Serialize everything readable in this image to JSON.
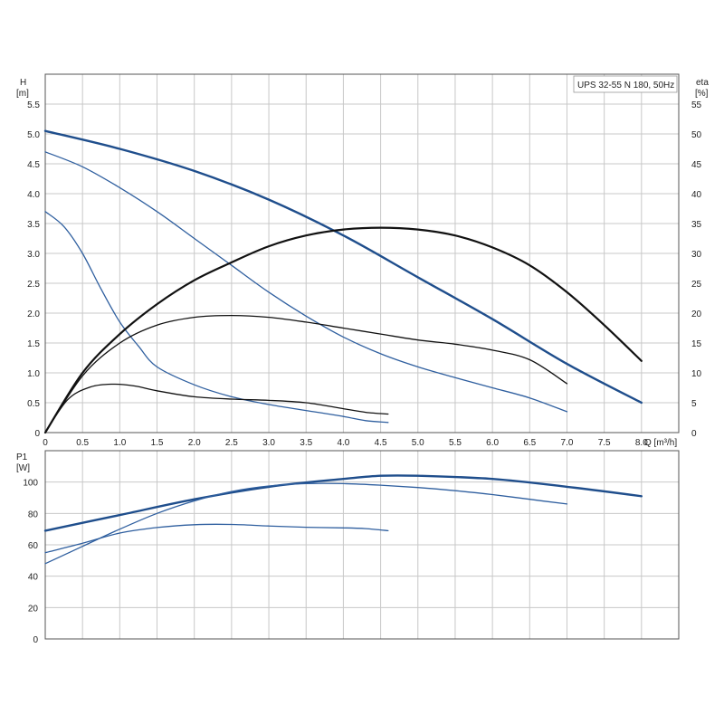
{
  "chart_data": [
    {
      "type": "line",
      "title": "UPS 32-55 N 180, 50Hz",
      "xlabel": "Q [m³/h]",
      "ylabel_line1": "H",
      "ylabel_line2": "[m]",
      "y2label_line1": "eta",
      "y2label_line2": "[%]",
      "xlim": [
        0,
        8.5
      ],
      "ylim": [
        0,
        6.0
      ],
      "y2lim": [
        0,
        60
      ],
      "xticks": [
        "0",
        "0.5",
        "1.0",
        "1.5",
        "2.0",
        "2.5",
        "3.0",
        "3.5",
        "4.0",
        "4.5",
        "5.0",
        "5.5",
        "6.0",
        "6.5",
        "7.0",
        "7.5",
        "8.0"
      ],
      "yticks": [
        "0",
        "0.5",
        "1.0",
        "1.5",
        "2.0",
        "2.5",
        "3.0",
        "3.5",
        "4.0",
        "4.5",
        "5.0",
        "5.5"
      ],
      "y2ticks": [
        "0",
        "5",
        "10",
        "15",
        "20",
        "25",
        "30",
        "35",
        "40",
        "45",
        "50",
        "55"
      ],
      "grid": true,
      "series": [
        {
          "axis": "left",
          "color": "#1f4e8c",
          "width": 2.4,
          "x": [
            0,
            1,
            2,
            3,
            4,
            5,
            6,
            7,
            8
          ],
          "y": [
            5.05,
            4.75,
            4.38,
            3.9,
            3.3,
            2.6,
            1.9,
            1.15,
            0.5
          ]
        },
        {
          "axis": "left",
          "color": "#2f5f9f",
          "width": 1.3,
          "x": [
            0,
            0.5,
            1,
            1.5,
            2,
            2.5,
            3,
            3.5,
            4,
            4.5,
            5,
            5.5,
            6,
            6.5,
            7
          ],
          "y": [
            4.7,
            4.45,
            4.1,
            3.7,
            3.25,
            2.8,
            2.35,
            1.95,
            1.6,
            1.32,
            1.1,
            0.92,
            0.75,
            0.58,
            0.35
          ]
        },
        {
          "axis": "left",
          "color": "#2f5f9f",
          "width": 1.3,
          "x": [
            0,
            0.25,
            0.5,
            0.75,
            1,
            1.25,
            1.5,
            2,
            2.5,
            3,
            3.5,
            4,
            4.3,
            4.6
          ],
          "y": [
            3.7,
            3.45,
            3.0,
            2.4,
            1.85,
            1.45,
            1.1,
            0.8,
            0.6,
            0.47,
            0.37,
            0.27,
            0.2,
            0.17
          ]
        },
        {
          "axis": "right",
          "color": "#111111",
          "width": 2.2,
          "x": [
            0,
            0.5,
            1,
            1.5,
            2,
            2.5,
            3,
            3.5,
            4,
            4.5,
            5,
            5.5,
            6,
            6.5,
            7,
            7.5,
            8
          ],
          "y": [
            0,
            10,
            16.5,
            21.5,
            25.5,
            28.5,
            31.2,
            33,
            34,
            34.3,
            34,
            33,
            31,
            28,
            23.5,
            18,
            12
          ]
        },
        {
          "axis": "right",
          "color": "#111111",
          "width": 1.3,
          "x": [
            0,
            0.5,
            1,
            1.5,
            2,
            2.5,
            3,
            3.5,
            4,
            4.5,
            5,
            5.5,
            6,
            6.5,
            7
          ],
          "y": [
            0,
            9.5,
            15,
            18,
            19.3,
            19.6,
            19.3,
            18.5,
            17.5,
            16.5,
            15.5,
            14.8,
            13.8,
            12.2,
            8.2
          ]
        },
        {
          "axis": "right",
          "color": "#111111",
          "width": 1.3,
          "x": [
            0,
            0.3,
            0.6,
            0.9,
            1.2,
            1.5,
            2,
            2.5,
            3,
            3.5,
            4,
            4.3,
            4.6
          ],
          "y": [
            0,
            5.5,
            7.6,
            8.1,
            7.8,
            7,
            6,
            5.6,
            5.4,
            5.0,
            4.0,
            3.4,
            3.1
          ]
        }
      ]
    },
    {
      "type": "line",
      "ylabel_line1": "P1",
      "ylabel_line2": "[W]",
      "xlim": [
        0,
        8.5
      ],
      "ylim": [
        0,
        120
      ],
      "yticks": [
        "0",
        "20",
        "40",
        "60",
        "80",
        "100"
      ],
      "grid": true,
      "series": [
        {
          "color": "#1f4e8c",
          "width": 2.4,
          "x": [
            0,
            1,
            2,
            3,
            4,
            4.5,
            5,
            6,
            7,
            8
          ],
          "y": [
            69,
            79,
            89,
            97,
            102,
            104,
            104,
            102,
            97,
            91
          ]
        },
        {
          "color": "#2f5f9f",
          "width": 1.3,
          "x": [
            0,
            0.5,
            1,
            1.5,
            2,
            2.5,
            3,
            3.5,
            4,
            4.5,
            5,
            5.5,
            6,
            6.5,
            7
          ],
          "y": [
            48,
            59,
            70,
            80,
            88,
            94,
            97.5,
            99,
            99,
            98,
            96.5,
            94.5,
            92,
            89,
            86
          ]
        },
        {
          "color": "#2f5f9f",
          "width": 1.3,
          "x": [
            0,
            0.5,
            1,
            1.5,
            2,
            2.5,
            3,
            3.5,
            4,
            4.3,
            4.6
          ],
          "y": [
            55,
            61,
            67.5,
            71,
            72.8,
            73,
            72,
            71.2,
            70.8,
            70.3,
            69
          ]
        }
      ]
    }
  ]
}
